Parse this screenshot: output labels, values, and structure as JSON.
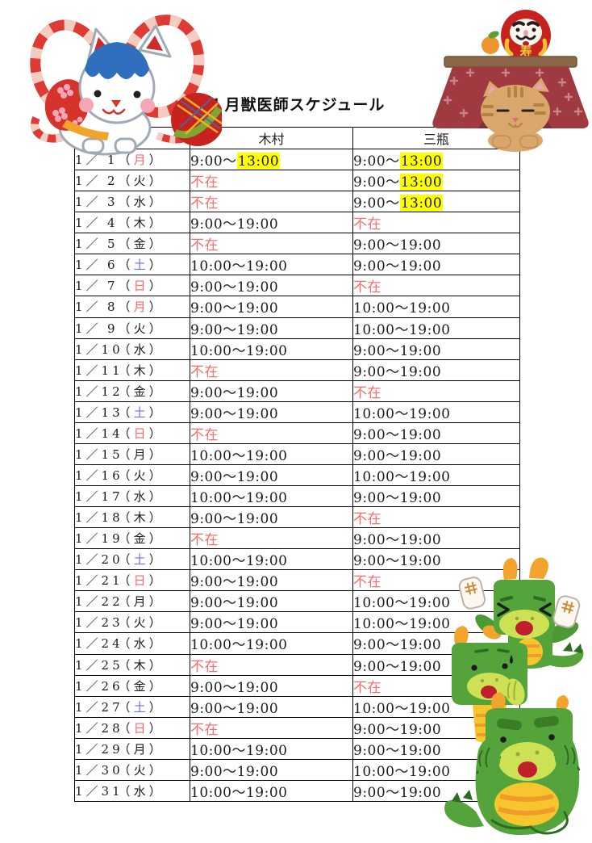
{
  "title": "１月獣医師スケジュール",
  "colors": {
    "holiday_red": "#FF6666",
    "saturday_blue": "#6E6EFF",
    "absent_red": "#FF6B6B",
    "highlight_yellow": "#FFFF00",
    "text_black": "#1B1B1B"
  },
  "illustrations": {
    "top_left": "new-year-lucky-cat-with-temari-ball",
    "top_right": "cat-under-kotatsu-with-daruma-and-mikan",
    "bottom_right": "three-stacked-green-dragons"
  },
  "table": {
    "headers": {
      "date": "",
      "kimura": "木村",
      "sanpei": "三瓶"
    },
    "rows": [
      {
        "month": "1",
        "num": "1",
        "day": "月",
        "day_color": "red",
        "kimura": {
          "text": "9:00～13:00",
          "highlight": "13:00"
        },
        "sanpei": {
          "text": "9:00～13:00",
          "highlight": "13:00"
        }
      },
      {
        "month": "1",
        "num": "2",
        "day": "火",
        "day_color": "black",
        "kimura": {
          "text": "不在",
          "absent": true
        },
        "sanpei": {
          "text": "9:00～13:00",
          "highlight": "13:00"
        }
      },
      {
        "month": "1",
        "num": "3",
        "day": "水",
        "day_color": "black",
        "kimura": {
          "text": "不在",
          "absent": true
        },
        "sanpei": {
          "text": "9:00～13:00",
          "highlight": "13:00"
        }
      },
      {
        "month": "1",
        "num": "4",
        "day": "木",
        "day_color": "black",
        "kimura": {
          "text": "9:00～19:00"
        },
        "sanpei": {
          "text": "不在",
          "absent": true
        }
      },
      {
        "month": "1",
        "num": "5",
        "day": "金",
        "day_color": "black",
        "kimura": {
          "text": "不在",
          "absent": true
        },
        "sanpei": {
          "text": "9:00～19:00"
        }
      },
      {
        "month": "1",
        "num": "6",
        "day": "土",
        "day_color": "blue",
        "kimura": {
          "text": "10:00～19:00"
        },
        "sanpei": {
          "text": "9:00～19:00"
        }
      },
      {
        "month": "1",
        "num": "7",
        "day": "日",
        "day_color": "red",
        "kimura": {
          "text": "9:00～19:00"
        },
        "sanpei": {
          "text": "不在",
          "absent": true
        }
      },
      {
        "month": "1",
        "num": "8",
        "day": "月",
        "day_color": "red",
        "kimura": {
          "text": "9:00～19:00"
        },
        "sanpei": {
          "text": "10:00～19:00"
        }
      },
      {
        "month": "1",
        "num": "9",
        "day": "火",
        "day_color": "black",
        "kimura": {
          "text": "9:00～19:00"
        },
        "sanpei": {
          "text": "10:00～19:00"
        }
      },
      {
        "month": "1",
        "num": "10",
        "day": "水",
        "day_color": "black",
        "kimura": {
          "text": "10:00～19:00"
        },
        "sanpei": {
          "text": "9:00～19:00"
        }
      },
      {
        "month": "1",
        "num": "11",
        "day": "木",
        "day_color": "black",
        "kimura": {
          "text": "不在",
          "absent": true
        },
        "sanpei": {
          "text": "9:00～19:00"
        }
      },
      {
        "month": "1",
        "num": "12",
        "day": "金",
        "day_color": "black",
        "kimura": {
          "text": "9:00～19:00"
        },
        "sanpei": {
          "text": "不在",
          "absent": true
        }
      },
      {
        "month": "1",
        "num": "13",
        "day": "土",
        "day_color": "blue",
        "kimura": {
          "text": "9:00～19:00"
        },
        "sanpei": {
          "text": "10:00～19:00"
        }
      },
      {
        "month": "1",
        "num": "14",
        "day": "日",
        "day_color": "red",
        "kimura": {
          "text": "不在",
          "absent": true
        },
        "sanpei": {
          "text": "9:00～19:00"
        }
      },
      {
        "month": "1",
        "num": "15",
        "day": "月",
        "day_color": "black",
        "kimura": {
          "text": "10:00～19:00"
        },
        "sanpei": {
          "text": "9:00～19:00"
        }
      },
      {
        "month": "1",
        "num": "16",
        "day": "火",
        "day_color": "black",
        "kimura": {
          "text": "9:00～19:00"
        },
        "sanpei": {
          "text": "10:00～19:00"
        }
      },
      {
        "month": "1",
        "num": "17",
        "day": "水",
        "day_color": "black",
        "kimura": {
          "text": "10:00～19:00"
        },
        "sanpei": {
          "text": "9:00～19:00"
        }
      },
      {
        "month": "1",
        "num": "18",
        "day": "木",
        "day_color": "black",
        "kimura": {
          "text": "9:00～19:00"
        },
        "sanpei": {
          "text": "不在",
          "absent": true
        }
      },
      {
        "month": "1",
        "num": "19",
        "day": "金",
        "day_color": "black",
        "kimura": {
          "text": "不在",
          "absent": true
        },
        "sanpei": {
          "text": "9:00～19:00"
        }
      },
      {
        "month": "1",
        "num": "20",
        "day": "土",
        "day_color": "blue",
        "kimura": {
          "text": "10:00～19:00"
        },
        "sanpei": {
          "text": "9:00～19:00"
        }
      },
      {
        "month": "1",
        "num": "21",
        "day": "日",
        "day_color": "red",
        "kimura": {
          "text": "9:00～19:00"
        },
        "sanpei": {
          "text": "不在",
          "absent": true
        }
      },
      {
        "month": "1",
        "num": "22",
        "day": "月",
        "day_color": "black",
        "kimura": {
          "text": "9:00～19:00"
        },
        "sanpei": {
          "text": "10:00～19:00"
        }
      },
      {
        "month": "1",
        "num": "23",
        "day": "火",
        "day_color": "black",
        "kimura": {
          "text": "9:00～19:00"
        },
        "sanpei": {
          "text": "10:00～19:00"
        }
      },
      {
        "month": "1",
        "num": "24",
        "day": "水",
        "day_color": "black",
        "kimura": {
          "text": "10:00～19:00"
        },
        "sanpei": {
          "text": "9:00～19:00"
        }
      },
      {
        "month": "1",
        "num": "25",
        "day": "木",
        "day_color": "black",
        "kimura": {
          "text": "不在",
          "absent": true
        },
        "sanpei": {
          "text": "9:00～19:00"
        }
      },
      {
        "month": "1",
        "num": "26",
        "day": "金",
        "day_color": "black",
        "kimura": {
          "text": "9:00～19:00"
        },
        "sanpei": {
          "text": "不在",
          "absent": true
        }
      },
      {
        "month": "1",
        "num": "27",
        "day": "土",
        "day_color": "blue",
        "kimura": {
          "text": "9:00～19:00"
        },
        "sanpei": {
          "text": "10:00～19:00"
        }
      },
      {
        "month": "1",
        "num": "28",
        "day": "日",
        "day_color": "red",
        "kimura": {
          "text": "不在",
          "absent": true
        },
        "sanpei": {
          "text": "9:00～19:00"
        }
      },
      {
        "month": "1",
        "num": "29",
        "day": "月",
        "day_color": "black",
        "kimura": {
          "text": "10:00～19:00"
        },
        "sanpei": {
          "text": "9:00～19:00"
        }
      },
      {
        "month": "1",
        "num": "30",
        "day": "火",
        "day_color": "black",
        "kimura": {
          "text": "9:00～19:00"
        },
        "sanpei": {
          "text": "10:00～19:00"
        }
      },
      {
        "month": "1",
        "num": "31",
        "day": "水",
        "day_color": "black",
        "kimura": {
          "text": "10:00～19:00"
        },
        "sanpei": {
          "text": "9:00～19:00"
        }
      }
    ]
  }
}
